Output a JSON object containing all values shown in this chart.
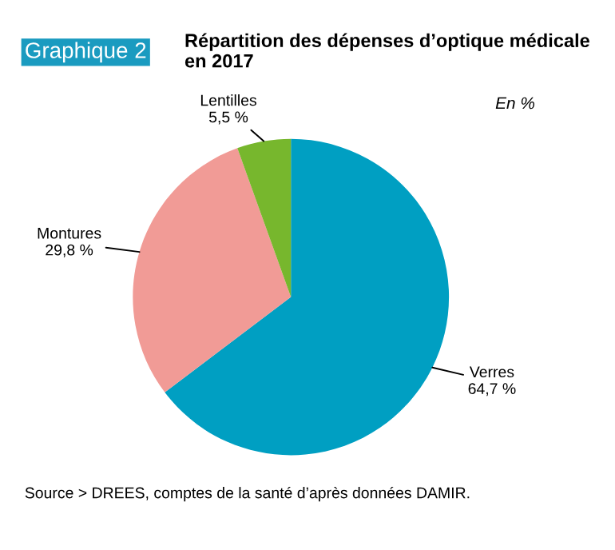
{
  "chart_data": {
    "type": "pie",
    "title": "Répartition des dépenses d’optique médicale en 2017",
    "subtitle": "En %",
    "categories": [
      "Verres",
      "Montures",
      "Lentilles"
    ],
    "values": [
      64.7,
      29.8,
      5.5
    ],
    "value_labels": [
      "64,7 %",
      "29,8 %",
      "5,5 %"
    ],
    "colors": [
      "#009fc2",
      "#f19b96",
      "#77b72d"
    ],
    "annotations": [
      "Graphique 2",
      "Source > DREES, comptes de la santé d’après données DAMIR."
    ]
  }
}
